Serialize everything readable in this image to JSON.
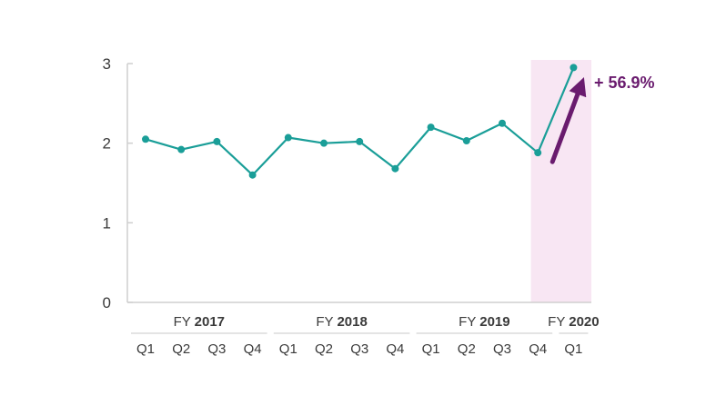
{
  "chart_data": {
    "type": "line",
    "title": "",
    "xlabel": "",
    "ylabel": "",
    "ylim": [
      0,
      3
    ],
    "yticks": [
      "0",
      "1",
      "2",
      "3"
    ],
    "grid": false,
    "line_color": "#1a9e98",
    "highlight_color": "#f8e6f3",
    "arrow_color": "#6a1b6e",
    "fiscal_years": [
      {
        "prefix": "FY",
        "year": "2017",
        "quarters": [
          "Q1",
          "Q2",
          "Q3",
          "Q4"
        ]
      },
      {
        "prefix": "FY",
        "year": "2018",
        "quarters": [
          "Q1",
          "Q2",
          "Q3",
          "Q4"
        ]
      },
      {
        "prefix": "FY",
        "year": "2019",
        "quarters": [
          "Q1",
          "Q2",
          "Q3",
          "Q4"
        ]
      },
      {
        "prefix": "FY",
        "year": "2020",
        "quarters": [
          "Q1"
        ]
      }
    ],
    "values": [
      2.05,
      1.92,
      2.02,
      1.6,
      2.07,
      2.0,
      2.02,
      1.68,
      2.2,
      2.03,
      2.25,
      1.88,
      2.95
    ],
    "highlight_range": [
      11,
      12
    ],
    "annotation": {
      "text": "+ 56.9%",
      "from_index": 11,
      "to_index": 12
    }
  }
}
